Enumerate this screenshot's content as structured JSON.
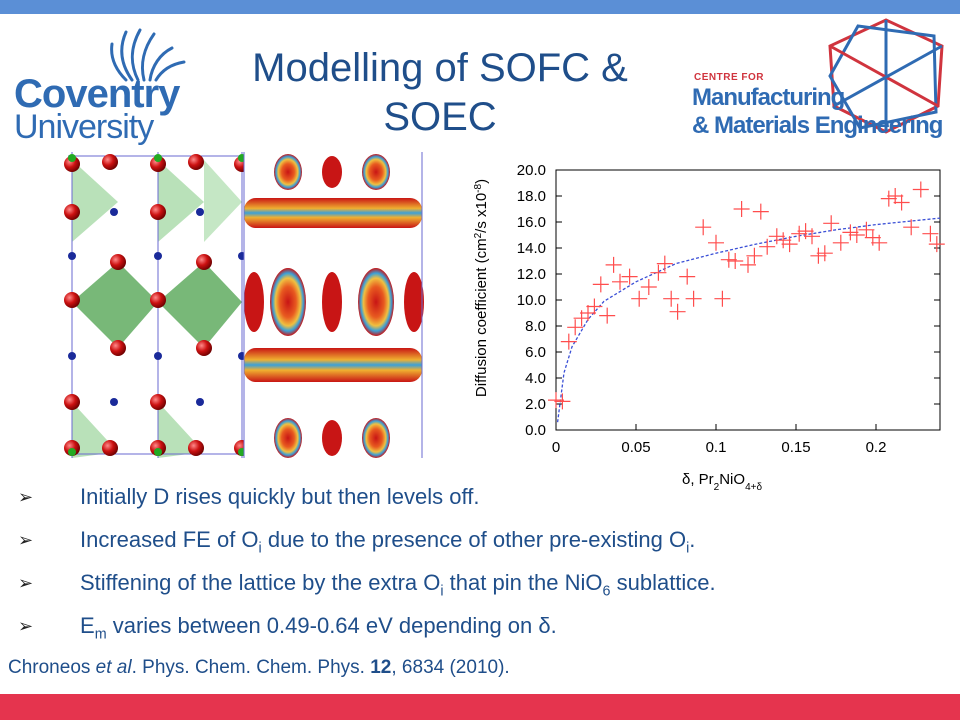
{
  "title": {
    "line1": "Modelling of SOFC &",
    "line2": "SOEC"
  },
  "logos": {
    "coventry": {
      "line1": "Coventry",
      "line2": "University"
    },
    "cme": {
      "small": "CENTRE FOR",
      "line1": "Manufacturing",
      "line2": "& Materials Engineering"
    }
  },
  "colors": {
    "top_bar": "#5b8fd6",
    "bottom_bar": "#e5344e",
    "text": "#1f4e8a",
    "points": "#ff4d4d",
    "fit": "#3a4fd6"
  },
  "chart_data": {
    "type": "scatter",
    "ylabel": {
      "pre": "Diffusion coefficient (cm",
      "sup1": "2",
      "mid": "/s x10",
      "sup2": "-8",
      "post": ")"
    },
    "xlabel": {
      "pre": "δ, Pr",
      "sub1": "2",
      "mid": "NiO",
      "sub2": "4+δ"
    },
    "xlim": [
      0,
      0.24
    ],
    "ylim": [
      0,
      20
    ],
    "xticks": [
      "0",
      "0.05",
      "0.1",
      "0.15",
      "0.2"
    ],
    "yticks": [
      "0.0",
      "2.0",
      "4.0",
      "6.0",
      "8.0",
      "10.0",
      "12.0",
      "14.0",
      "16.0",
      "18.0",
      "20.0"
    ],
    "points": [
      [
        0.0,
        2.3
      ],
      [
        0.004,
        2.2
      ],
      [
        0.008,
        6.8
      ],
      [
        0.012,
        7.9
      ],
      [
        0.016,
        8.6
      ],
      [
        0.02,
        9.0
      ],
      [
        0.024,
        9.5
      ],
      [
        0.028,
        11.2
      ],
      [
        0.032,
        8.8
      ],
      [
        0.036,
        12.7
      ],
      [
        0.04,
        11.4
      ],
      [
        0.046,
        11.8
      ],
      [
        0.052,
        10.1
      ],
      [
        0.058,
        11.0
      ],
      [
        0.064,
        12.1
      ],
      [
        0.068,
        12.8
      ],
      [
        0.072,
        10.1
      ],
      [
        0.076,
        9.1
      ],
      [
        0.082,
        11.8
      ],
      [
        0.086,
        10.1
      ],
      [
        0.092,
        15.6
      ],
      [
        0.1,
        14.4
      ],
      [
        0.104,
        10.1
      ],
      [
        0.108,
        13.1
      ],
      [
        0.112,
        13.0
      ],
      [
        0.116,
        17.0
      ],
      [
        0.12,
        12.7
      ],
      [
        0.124,
        13.4
      ],
      [
        0.128,
        16.8
      ],
      [
        0.132,
        14.1
      ],
      [
        0.138,
        14.9
      ],
      [
        0.142,
        14.6
      ],
      [
        0.146,
        14.3
      ],
      [
        0.152,
        15.1
      ],
      [
        0.156,
        15.3
      ],
      [
        0.16,
        14.9
      ],
      [
        0.164,
        13.4
      ],
      [
        0.168,
        13.6
      ],
      [
        0.172,
        15.9
      ],
      [
        0.178,
        14.4
      ],
      [
        0.184,
        15.2
      ],
      [
        0.188,
        15.0
      ],
      [
        0.194,
        15.4
      ],
      [
        0.198,
        14.8
      ],
      [
        0.202,
        14.4
      ],
      [
        0.208,
        17.8
      ],
      [
        0.212,
        18.0
      ],
      [
        0.216,
        17.5
      ],
      [
        0.222,
        15.6
      ],
      [
        0.228,
        18.5
      ],
      [
        0.234,
        15.1
      ],
      [
        0.238,
        14.3
      ]
    ],
    "fit": [
      [
        0.001,
        0.6
      ],
      [
        0.005,
        4.4
      ],
      [
        0.01,
        6.4
      ],
      [
        0.02,
        8.5
      ],
      [
        0.03,
        9.9
      ],
      [
        0.05,
        11.4
      ],
      [
        0.075,
        12.8
      ],
      [
        0.1,
        13.6
      ],
      [
        0.125,
        14.3
      ],
      [
        0.15,
        14.9
      ],
      [
        0.175,
        15.4
      ],
      [
        0.2,
        15.8
      ],
      [
        0.24,
        16.3
      ]
    ]
  },
  "bullets": [
    {
      "marker": "➢",
      "parts": [
        {
          "t": "Initially D rises quickly but then levels off."
        }
      ]
    },
    {
      "marker": "➢",
      "parts": [
        {
          "t": "Increased FE of O"
        },
        {
          "sub": "i"
        },
        {
          "t": " due to the presence of other pre-existing O"
        },
        {
          "sub": "i"
        },
        {
          "t": "."
        }
      ]
    },
    {
      "marker": "➢",
      "parts": [
        {
          "t": "Stiffening of the lattice by the extra O"
        },
        {
          "sub": "i"
        },
        {
          "t": " that pin the NiO"
        },
        {
          "sub": "6"
        },
        {
          "t": " sublattice."
        }
      ]
    },
    {
      "marker": "➢",
      "parts": [
        {
          "t": "E"
        },
        {
          "sub": "m"
        },
        {
          "t": " varies between 0.49-0.64 eV depending on δ."
        }
      ]
    }
  ],
  "citation": {
    "authors": "Chroneos ",
    "etal": "et al",
    "journal": ". Phys. Chem. Chem. Phys. ",
    "volume": "12",
    "rest": ", 6834 (2010)."
  }
}
